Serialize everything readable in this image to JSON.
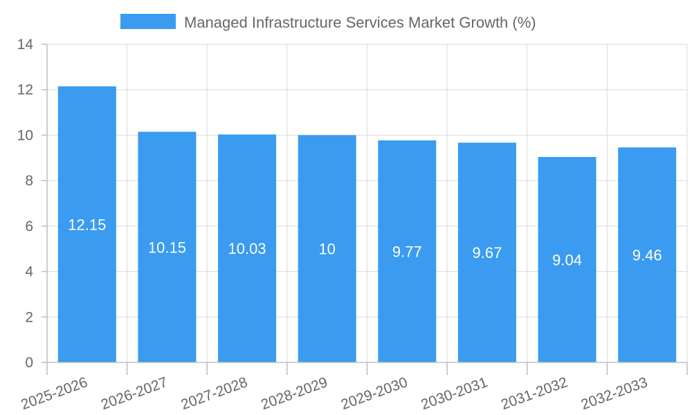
{
  "chart_data": {
    "type": "bar",
    "title": "",
    "xlabel": "",
    "ylabel": "",
    "categories": [
      "2025-2026",
      "2026-2027",
      "2027-2028",
      "2028-2029",
      "2029-2030",
      "2030-2031",
      "2031-2032",
      "2032-2033"
    ],
    "series": [
      {
        "name": "Managed Infrastructure Services Market Growth (%)",
        "values": [
          12.15,
          10.15,
          10.03,
          10,
          9.77,
          9.67,
          9.04,
          9.46
        ],
        "data_labels": [
          "12.15",
          "10.15",
          "10.03",
          "10",
          "9.77",
          "9.67",
          "9.04",
          "9.46"
        ]
      }
    ],
    "ylim": [
      0,
      14
    ],
    "yticks": [
      0,
      2,
      4,
      6,
      8,
      10,
      12,
      14
    ],
    "grid": true,
    "legend_position": "top-center",
    "colors": {
      "bar": "#3a9bf0",
      "grid": "#d9d9d9",
      "axis": "#bdbdbd",
      "text": "#666666",
      "data_label": "#ffffff"
    }
  }
}
